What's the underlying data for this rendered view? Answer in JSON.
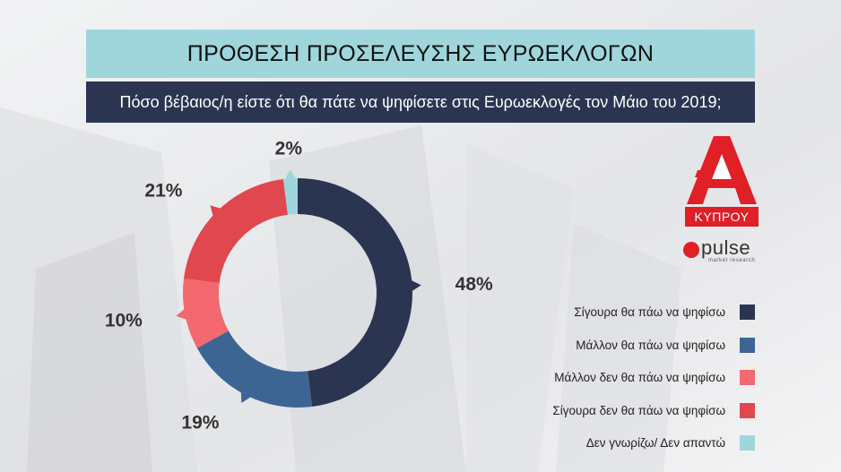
{
  "header": {
    "title": "ΠΡΟΘΕΣΗ ΠΡΟΣΕΛΕΥΣΗΣ ΕΥΡΩΕΚΛΟΓΩΝ",
    "subtitle": "Πόσο βέβαιος/η είστε ότι θα πάτε να ψηφίσετε στις Ευρωεκλογές τον Μάιο του 2019;"
  },
  "brand": {
    "ribbon": "ΚΥΠΡΟΥ",
    "pulse": "pulse",
    "pulse_sub": "market research",
    "red": "#e01f26"
  },
  "chart_data": {
    "type": "pie",
    "style": "donut",
    "title": "ΠΡΟΘΕΣΗ ΠΡΟΣΕΛΕΥΣΗΣ ΕΥΡΩΕΚΛΟΓΩΝ",
    "subtitle": "Πόσο βέβαιος/η είστε ότι θα πάτε να ψηφίσετε στις Ευρωεκλογές τον Μάιο του 2019;",
    "legend_position": "right",
    "categories": [
      "Σίγουρα θα πάω να ψηφίσω",
      "Μάλλον θα πάω να ψηφίσω",
      "Μάλλον δεν θα πάω να ψηφίσω",
      "Σίγουρα δεν θα πάω να ψηφίσω",
      "Δεν γνωρίζω/ Δεν απαντώ"
    ],
    "values": [
      48,
      19,
      10,
      21,
      2
    ],
    "labels": [
      "48%",
      "19%",
      "10%",
      "21%",
      "2%"
    ],
    "colors": [
      "#2b3552",
      "#3d6593",
      "#f46870",
      "#e0474e",
      "#9fd6dc"
    ]
  }
}
